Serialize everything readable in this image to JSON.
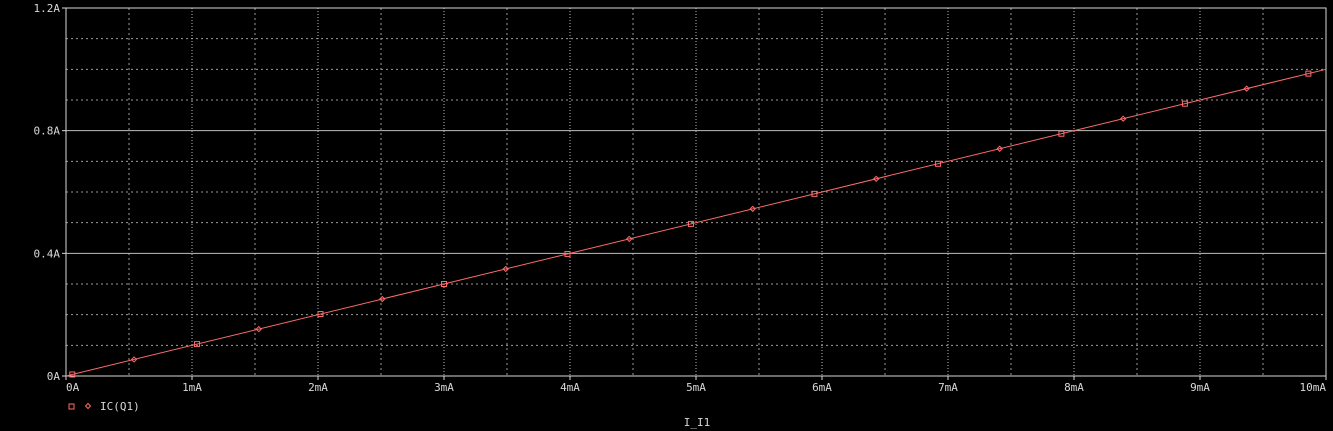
{
  "colors": {
    "background": "#000000",
    "axis": "#d8d8d8",
    "grid_major": "#bdbdbd",
    "grid_minor": "#9a9a9a",
    "trace": "#ff6b6b",
    "text": "#d8d8d8"
  },
  "chart_data": {
    "type": "line",
    "xlabel": "I_I1",
    "ylabel": "",
    "title": "",
    "xlim": [
      0,
      10
    ],
    "ylim": [
      0,
      1.2
    ],
    "x_unit": "mA",
    "y_unit": "A",
    "x_ticks": [
      {
        "value": 0,
        "label": "0A"
      },
      {
        "value": 1,
        "label": "1mA"
      },
      {
        "value": 2,
        "label": "2mA"
      },
      {
        "value": 3,
        "label": "3mA"
      },
      {
        "value": 4,
        "label": "4mA"
      },
      {
        "value": 5,
        "label": "5mA"
      },
      {
        "value": 6,
        "label": "6mA"
      },
      {
        "value": 7,
        "label": "7mA"
      },
      {
        "value": 8,
        "label": "8mA"
      },
      {
        "value": 9,
        "label": "9mA"
      },
      {
        "value": 10,
        "label": "10mA"
      }
    ],
    "y_ticks": [
      {
        "value": 0,
        "label": "0A"
      },
      {
        "value": 0.4,
        "label": "0.4A"
      },
      {
        "value": 0.8,
        "label": "0.8A"
      },
      {
        "value": 1.2,
        "label": "1.2A"
      }
    ],
    "grid": true,
    "legend_position": "bottom-left",
    "series": [
      {
        "name": "IC(Q1)",
        "x": [
          0,
          10
        ],
        "values": [
          0,
          1.0
        ],
        "markers_x": [
          0.05,
          1.04,
          2.02,
          3.0,
          3.98,
          4.96,
          5.94,
          6.92,
          7.9,
          8.88,
          9.86
        ],
        "color": "#ff6b6b"
      }
    ]
  }
}
